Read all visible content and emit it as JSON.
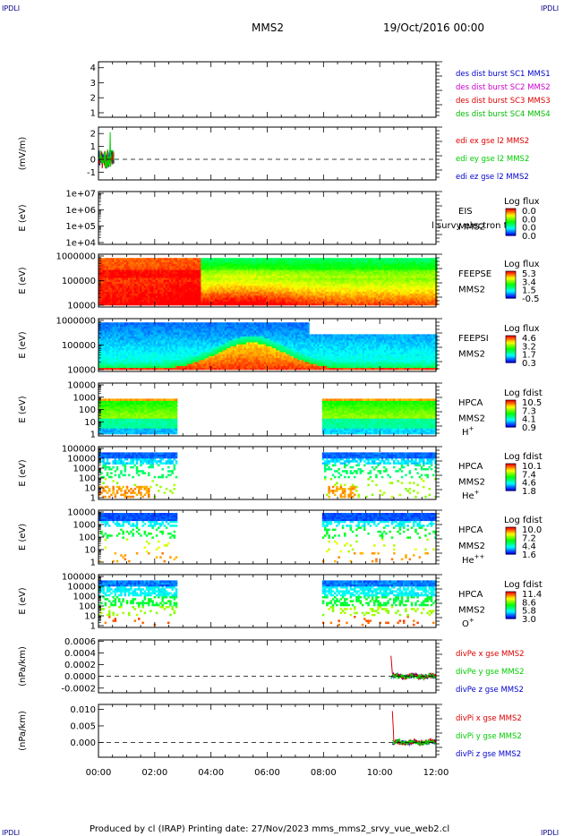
{
  "header": {
    "corner_left": "IPDLI",
    "corner_right": "IPDLI",
    "spacecraft": "MMS2",
    "datetime": "19/Oct/2016 00:00"
  },
  "footer": {
    "text": "Produced by cl (IRAP)   Printing date: 27/Nov/2023   mms_mms2_srvy_vue_web2.cl",
    "corner_left": "IPDLI",
    "corner_right": "IPDLI"
  },
  "colors": {
    "mms1": "#0000cc",
    "mms2": "#cc00cc",
    "mms3": "#dd0000",
    "mms4": "#00bb00",
    "x": "#dd0000",
    "y": "#00cc00",
    "z": "#0000cc"
  },
  "chart_data": [
    {
      "type": "line",
      "id": "burst",
      "ylabel": "",
      "yticks": [
        "1",
        "2",
        "3",
        "4"
      ],
      "ylim": [
        0.7,
        4.4
      ],
      "legend": [
        {
          "text": "des dist burst SC1 MMS1",
          "color": "mms1"
        },
        {
          "text": "des dist burst SC2 MMS2",
          "color": "mms2"
        },
        {
          "text": "des dist burst SC3 MMS3",
          "color": "mms3"
        },
        {
          "text": "des dist burst SC4 MMS4",
          "color": "mms4"
        }
      ]
    },
    {
      "type": "line",
      "id": "edi",
      "ylabel": "(mV/m)",
      "yticks": [
        "-1",
        "0",
        "1",
        "2"
      ],
      "ylim": [
        -1.6,
        2.5
      ],
      "zero_line": true,
      "series": [
        {
          "name": "edi ex gse l2 MMS2",
          "color": "x",
          "t_start": 0.0,
          "t_end": 0.55
        },
        {
          "name": "edi ey gse l2 MMS2",
          "color": "y",
          "t_start": 0.0,
          "t_end": 0.55,
          "peak": 2.1
        },
        {
          "name": "edi ez gse l2 MMS2",
          "color": "z",
          "t_start": 0.0,
          "t_end": 0.55
        }
      ]
    },
    {
      "type": "heatmap",
      "id": "eis",
      "ylabel": "E (eV)",
      "yticks": [
        "1e+04",
        "1e+05",
        "1e+06",
        "1e+07"
      ],
      "side_labels": [
        "EIS",
        "MMS2"
      ],
      "overlay_text": "l survy electron to",
      "colorbar": {
        "title": "Log flux",
        "ticks": [
          "0.0",
          "0.0",
          "0.0",
          "0.0"
        ]
      },
      "coverage": []
    },
    {
      "type": "heatmap",
      "id": "feepse",
      "ylabel": "E (eV)",
      "yticks": [
        "10000",
        "100000",
        "1000000"
      ],
      "side_labels": [
        "FEEPSE",
        "MMS2"
      ],
      "colorbar": {
        "title": "Log flux",
        "ticks": [
          "5.3",
          "3.4",
          "1.5",
          "-0.5"
        ]
      },
      "coverage": [
        [
          0.0,
          12.0
        ]
      ],
      "pattern": "feepse"
    },
    {
      "type": "heatmap",
      "id": "feepsi",
      "ylabel": "E (eV)",
      "yticks": [
        "10000",
        "100000",
        "1000000"
      ],
      "side_labels": [
        "FEEPSI",
        "MMS2"
      ],
      "colorbar": {
        "title": "Log flux",
        "ticks": [
          "4.6",
          "3.2",
          "1.7",
          "0.3"
        ]
      },
      "coverage": [
        [
          0.0,
          12.0
        ]
      ],
      "pattern": "feepsi"
    },
    {
      "type": "heatmap",
      "id": "hpca_h",
      "ylabel": "E (eV)",
      "yticks": [
        "1",
        "10",
        "100",
        "1000",
        "10000"
      ],
      "side_labels": [
        "HPCA",
        "MMS2"
      ],
      "species": "H",
      "species_sup": "+",
      "colorbar": {
        "title": "Log fdist",
        "ticks": [
          "10.5",
          "7.3",
          "4.1",
          "0.9"
        ]
      },
      "coverage": [
        [
          0.0,
          2.75
        ],
        [
          7.95,
          12.0
        ]
      ],
      "pattern": "hplus"
    },
    {
      "type": "heatmap",
      "id": "hpca_he",
      "ylabel": "E (eV)",
      "yticks": [
        "1",
        "10",
        "100",
        "1000",
        "10000",
        "100000"
      ],
      "side_labels": [
        "HPCA",
        "MMS2"
      ],
      "species": "He",
      "species_sup": "+",
      "colorbar": {
        "title": "Log fdist",
        "ticks": [
          "10.1",
          "7.4",
          "4.6",
          "1.8"
        ]
      },
      "coverage": [
        [
          0.0,
          2.75
        ],
        [
          7.95,
          12.0
        ]
      ],
      "pattern": "heplus"
    },
    {
      "type": "heatmap",
      "id": "hpca_hepp",
      "ylabel": "E (eV)",
      "yticks": [
        "1",
        "10",
        "100",
        "1000",
        "10000"
      ],
      "side_labels": [
        "HPCA",
        "MMS2"
      ],
      "species": "He",
      "species_sup": "++",
      "colorbar": {
        "title": "Log fdist",
        "ticks": [
          "10.0",
          "7.2",
          "4.4",
          "1.6"
        ]
      },
      "coverage": [
        [
          0.0,
          2.75
        ],
        [
          7.95,
          12.0
        ]
      ],
      "pattern": "hepp"
    },
    {
      "type": "heatmap",
      "id": "hpca_o",
      "ylabel": "E (eV)",
      "yticks": [
        "1",
        "10",
        "100",
        "1000",
        "10000",
        "100000"
      ],
      "side_labels": [
        "HPCA",
        "MMS2"
      ],
      "species": "O",
      "species_sup": "+",
      "colorbar": {
        "title": "Log fdist",
        "ticks": [
          "11.4",
          "8.6",
          "5.8",
          "3.0"
        ]
      },
      "coverage": [
        [
          0.0,
          2.75
        ],
        [
          7.95,
          12.0
        ]
      ],
      "pattern": "oplus"
    },
    {
      "type": "line",
      "id": "divpe",
      "ylabel": "(nPa/km)",
      "yticks": [
        "-0.0002",
        "0.0000",
        "0.0002",
        "0.0004",
        "0.0006"
      ],
      "ylim": [
        -0.00028,
        0.00062
      ],
      "zero_line": true,
      "series": [
        {
          "name": "divPe x gse MMS2",
          "color": "x",
          "t_start": 10.4,
          "t_end": 12.0,
          "peak": 0.00035
        },
        {
          "name": "divPe y gse MMS2",
          "color": "y",
          "t_start": 10.4,
          "t_end": 12.0
        },
        {
          "name": "divPe z gse MMS2",
          "color": "z",
          "t_start": 10.4,
          "t_end": 12.0
        }
      ]
    },
    {
      "type": "line",
      "id": "divpi",
      "ylabel": "(nPa/km)",
      "yticks": [
        "0.000",
        "0.005",
        "0.010"
      ],
      "ylim": [
        -0.0045,
        0.0115
      ],
      "zero_line": true,
      "series": [
        {
          "name": "divPi x gse MMS2",
          "color": "x",
          "t_start": 10.45,
          "t_end": 12.0,
          "peak": 0.0095
        },
        {
          "name": "divPi y gse MMS2",
          "color": "y",
          "t_start": 10.45,
          "t_end": 12.0
        },
        {
          "name": "divPi z gse MMS2",
          "color": "z",
          "t_start": 10.45,
          "t_end": 12.0
        }
      ]
    }
  ],
  "time_axis": {
    "ticks": [
      "00:00",
      "02:00",
      "04:00",
      "06:00",
      "08:00",
      "10:00",
      "12:00"
    ],
    "range_hours": [
      0,
      12
    ]
  }
}
